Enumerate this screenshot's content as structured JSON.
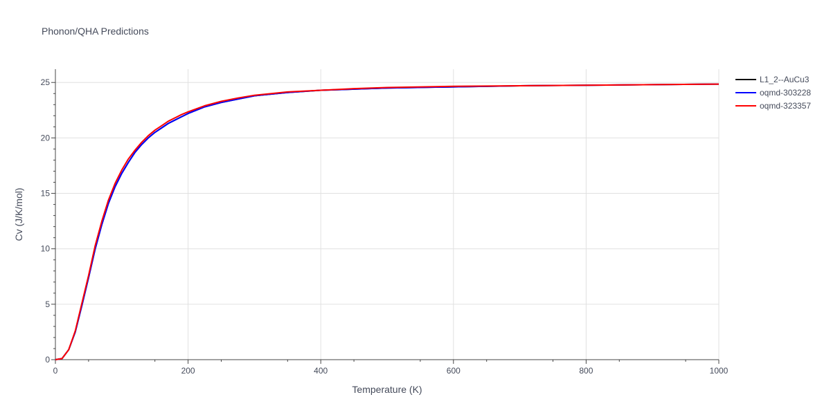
{
  "chart_data": {
    "type": "line",
    "title": "Phonon/QHA Predictions",
    "xlabel": "Temperature (K)",
    "ylabel": "Cv (J/K/mol)",
    "xlim": [
      0,
      1000
    ],
    "ylim": [
      0,
      26.2
    ],
    "x_ticks": [
      0,
      200,
      400,
      600,
      800,
      1000
    ],
    "y_ticks": [
      0,
      5,
      10,
      15,
      20,
      25
    ],
    "x_tick_labels": [
      "0",
      "200",
      "400",
      "600",
      "800",
      "1000"
    ],
    "y_tick_labels": [
      "0",
      "5",
      "10",
      "15",
      "20",
      "25"
    ],
    "grid": true,
    "legend_position": "top-right",
    "series": [
      {
        "name": "L1_2--AuCu3",
        "color": "#000000",
        "x": [
          0,
          10,
          20,
          30,
          40,
          50,
          60,
          70,
          80,
          90,
          100,
          110,
          120,
          130,
          140,
          150,
          160,
          170,
          180,
          190,
          200,
          225,
          250,
          275,
          300,
          350,
          400,
          450,
          500,
          600,
          700,
          800,
          900,
          1000
        ],
        "y": [
          0,
          0.1,
          0.9,
          2.5,
          4.9,
          7.4,
          10.0,
          12.2,
          14.1,
          15.6,
          16.8,
          17.8,
          18.7,
          19.4,
          20.0,
          20.5,
          20.9,
          21.3,
          21.6,
          21.9,
          22.2,
          22.8,
          23.2,
          23.5,
          23.8,
          24.1,
          24.3,
          24.4,
          24.5,
          24.6,
          24.7,
          24.75,
          24.8,
          24.85
        ]
      },
      {
        "name": "oqmd-303228",
        "color": "#0000ff",
        "x": [
          0,
          10,
          20,
          30,
          40,
          50,
          60,
          70,
          80,
          90,
          100,
          110,
          120,
          130,
          140,
          150,
          160,
          170,
          180,
          190,
          200,
          225,
          250,
          275,
          300,
          350,
          400,
          450,
          500,
          600,
          700,
          800,
          900,
          1000
        ],
        "y": [
          0,
          0.1,
          0.9,
          2.5,
          4.9,
          7.4,
          10.0,
          12.2,
          14.1,
          15.6,
          16.8,
          17.8,
          18.7,
          19.4,
          20.0,
          20.5,
          20.9,
          21.3,
          21.6,
          21.9,
          22.2,
          22.8,
          23.2,
          23.5,
          23.8,
          24.1,
          24.3,
          24.4,
          24.5,
          24.6,
          24.7,
          24.75,
          24.8,
          24.85
        ]
      },
      {
        "name": "oqmd-323357",
        "color": "#ff0000",
        "x": [
          0,
          10,
          20,
          30,
          40,
          50,
          60,
          70,
          80,
          90,
          100,
          110,
          120,
          130,
          140,
          150,
          160,
          170,
          180,
          190,
          200,
          225,
          250,
          275,
          300,
          350,
          400,
          450,
          500,
          600,
          700,
          800,
          900,
          1000
        ],
        "y": [
          0,
          0.1,
          0.9,
          2.6,
          5.1,
          7.6,
          10.3,
          12.5,
          14.4,
          15.9,
          17.1,
          18.1,
          18.9,
          19.6,
          20.2,
          20.7,
          21.1,
          21.5,
          21.8,
          22.1,
          22.35,
          22.9,
          23.3,
          23.6,
          23.85,
          24.15,
          24.3,
          24.45,
          24.55,
          24.65,
          24.7,
          24.75,
          24.8,
          24.85
        ]
      }
    ]
  }
}
